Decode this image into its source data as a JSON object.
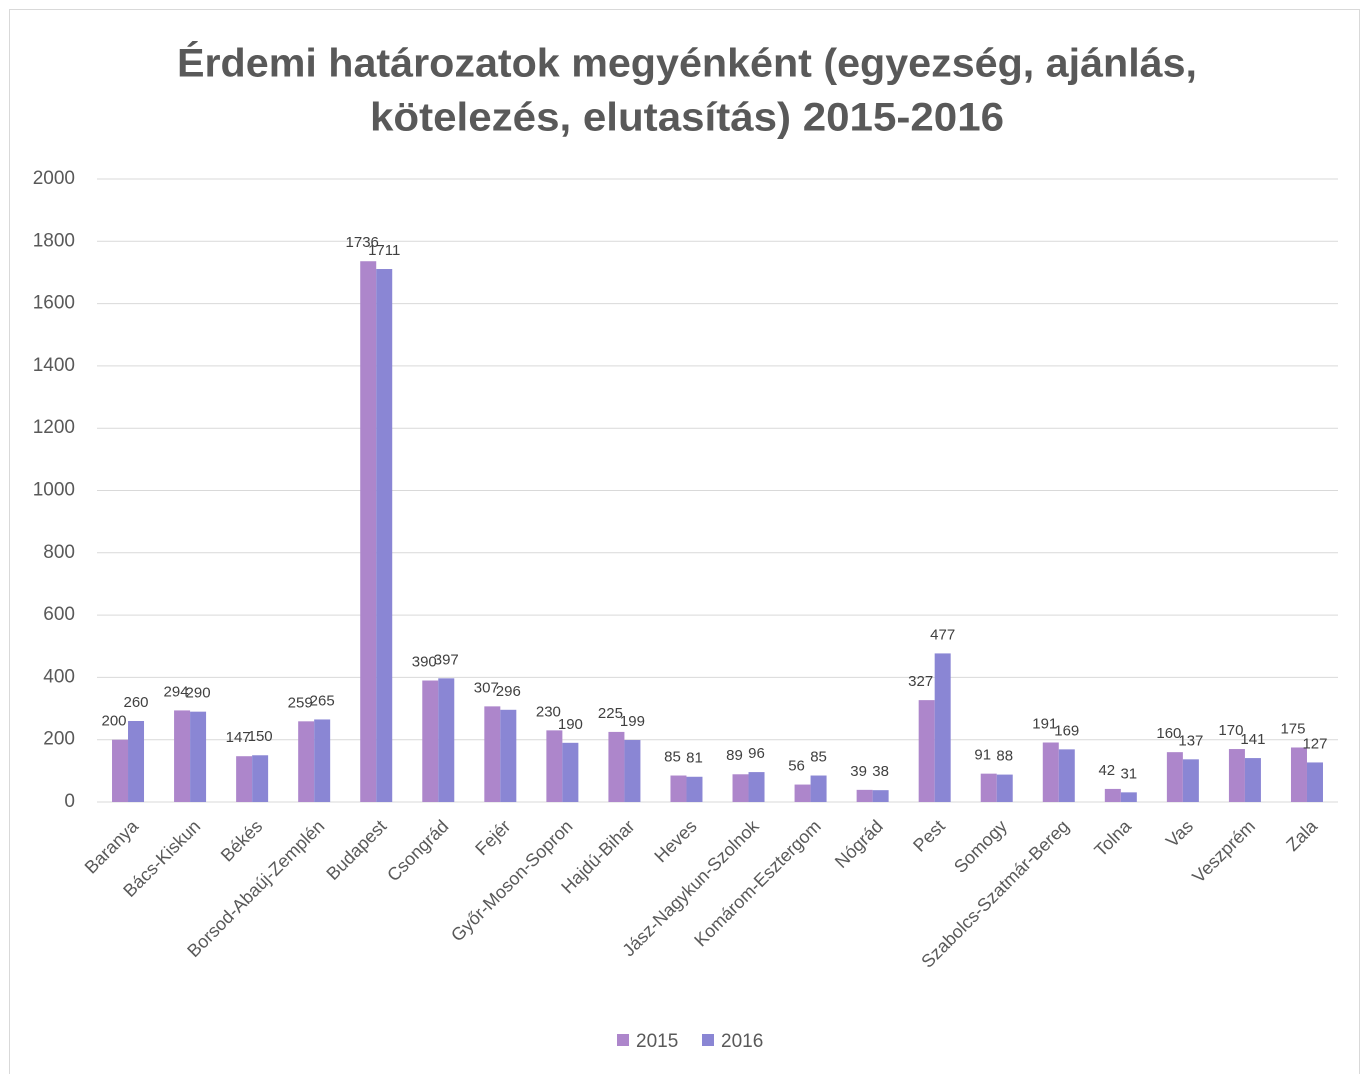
{
  "chart_data": {
    "type": "bar",
    "title": [
      "Érdemi határozatok megyénként (egyezség, ajánlás,",
      "kötelezés, elutasítás) 2015-2016"
    ],
    "categories": [
      "Baranya",
      "Bács-Kiskun",
      "Békés",
      "Borsod-Abaúj-Zemplén",
      "Budapest",
      "Csongrád",
      "Fejér",
      "Győr-Moson-Sopron",
      "Hajdú-Bihar",
      "Heves",
      "Jász-Nagykun-Szolnok",
      "Komárom-Esztergom",
      "Nógrád",
      "Pest",
      "Somogy",
      "Szabolcs-Szatmár-Bereg",
      "Tolna",
      "Vas",
      "Veszprém",
      "Zala"
    ],
    "series": [
      {
        "name": "2015",
        "color": "#ad86cb",
        "values": [
          200,
          294,
          147,
          259,
          1736,
          390,
          307,
          230,
          225,
          85,
          89,
          56,
          39,
          327,
          91,
          191,
          42,
          160,
          170,
          175
        ]
      },
      {
        "name": "2016",
        "color": "#8a86d4",
        "values": [
          260,
          290,
          150,
          265,
          1711,
          397,
          296,
          190,
          199,
          81,
          96,
          85,
          38,
          477,
          88,
          169,
          31,
          137,
          141,
          127
        ]
      }
    ],
    "ylim": [
      0,
      2000
    ],
    "yticks": [
      0,
      200,
      400,
      600,
      800,
      1000,
      1200,
      1400,
      1600,
      1800,
      2000
    ],
    "grid": true,
    "legend": "bottom"
  }
}
